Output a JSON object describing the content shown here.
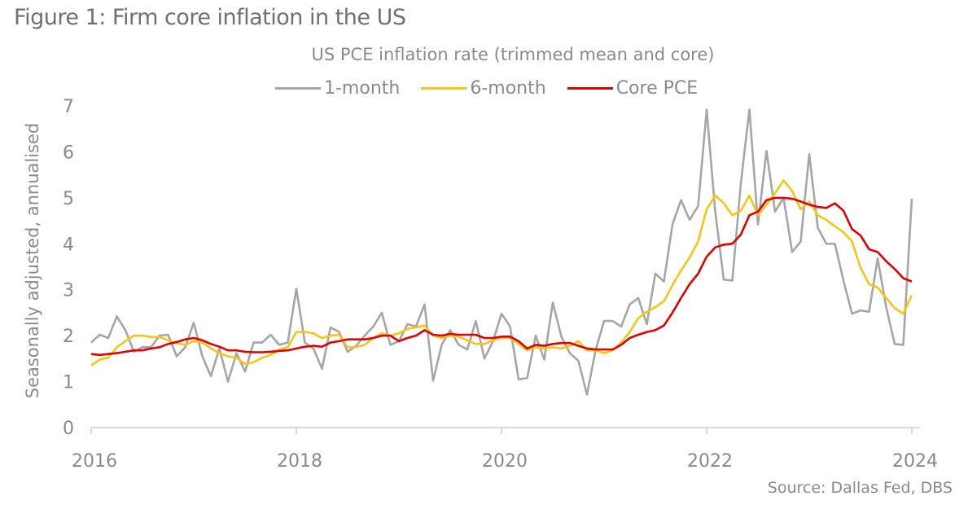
{
  "figure_title": "Figure 1: Firm core inflation in the US",
  "source": "Source: Dallas Fed, DBS",
  "chart_data": {
    "type": "line",
    "title": "US PCE inflation rate (trimmed mean and core)",
    "xlabel": "",
    "ylabel": "Seasonally adjusted, annualised",
    "ylim": [
      0,
      7
    ],
    "xlim": [
      "2016-01",
      "2024-01"
    ],
    "grid": false,
    "legend_position": "top-center",
    "yticks": [
      "0",
      "1",
      "2",
      "3",
      "4",
      "5",
      "6",
      "7"
    ],
    "xticks": [
      "2016",
      "2018",
      "2020",
      "2022",
      "2024"
    ],
    "x_start": "2016-01",
    "x_frequency": "monthly",
    "series": [
      {
        "name": "1-month",
        "color": "#a6a6a6",
        "values": [
          1.85,
          2.02,
          1.95,
          2.42,
          2.12,
          1.65,
          1.75,
          1.75,
          2.0,
          2.02,
          1.55,
          1.75,
          2.28,
          1.55,
          1.12,
          1.72,
          1.0,
          1.62,
          1.22,
          1.85,
          1.85,
          2.02,
          1.8,
          1.85,
          3.02,
          1.85,
          1.72,
          1.28,
          2.18,
          2.08,
          1.65,
          1.78,
          2.0,
          2.2,
          2.5,
          1.8,
          1.88,
          2.25,
          2.2,
          2.68,
          1.02,
          1.8,
          2.12,
          1.8,
          1.7,
          2.32,
          1.5,
          1.88,
          2.48,
          2.2,
          1.05,
          1.08,
          2.0,
          1.48,
          2.72,
          1.98,
          1.62,
          1.45,
          0.72,
          1.68,
          2.32,
          2.32,
          2.2,
          2.68,
          2.82,
          2.25,
          3.35,
          3.18,
          4.42,
          4.95,
          4.52,
          4.82,
          6.92,
          4.7,
          3.22,
          3.2,
          5.32,
          6.92,
          4.42,
          6.02,
          4.7,
          5.0,
          3.82,
          4.05,
          5.95,
          4.35,
          4.0,
          4.0,
          3.2,
          2.48,
          2.55,
          2.52,
          3.68,
          2.62,
          1.82,
          1.8,
          4.98
        ]
      },
      {
        "name": "6-month",
        "color": "#f5c518",
        "values": [
          1.35,
          1.48,
          1.52,
          1.75,
          1.88,
          2.0,
          2.0,
          1.97,
          1.97,
          1.9,
          1.84,
          1.8,
          1.88,
          1.85,
          1.72,
          1.62,
          1.55,
          1.52,
          1.38,
          1.42,
          1.52,
          1.58,
          1.7,
          1.75,
          2.08,
          2.08,
          2.05,
          1.95,
          2.0,
          2.02,
          1.75,
          1.75,
          1.8,
          1.95,
          2.05,
          2.0,
          2.05,
          2.15,
          2.18,
          2.22,
          2.0,
          1.95,
          2.0,
          1.98,
          1.9,
          1.82,
          1.82,
          1.9,
          1.95,
          1.95,
          1.82,
          1.68,
          1.75,
          1.72,
          1.75,
          1.72,
          1.78,
          1.88,
          1.68,
          1.68,
          1.62,
          1.68,
          1.85,
          2.08,
          2.38,
          2.52,
          2.62,
          2.75,
          3.1,
          3.42,
          3.7,
          4.05,
          4.75,
          5.05,
          4.88,
          4.62,
          4.72,
          5.05,
          4.62,
          4.85,
          5.1,
          5.38,
          5.15,
          4.75,
          4.92,
          4.62,
          4.52,
          4.38,
          4.25,
          4.05,
          3.48,
          3.12,
          3.05,
          2.82,
          2.6,
          2.48,
          2.88
        ]
      },
      {
        "name": "Core PCE",
        "color": "#e00000",
        "values": [
          1.6,
          1.58,
          1.6,
          1.62,
          1.65,
          1.68,
          1.68,
          1.72,
          1.75,
          1.82,
          1.86,
          1.92,
          1.95,
          1.9,
          1.82,
          1.76,
          1.68,
          1.68,
          1.65,
          1.64,
          1.64,
          1.65,
          1.67,
          1.68,
          1.72,
          1.76,
          1.78,
          1.76,
          1.85,
          1.88,
          1.92,
          1.92,
          1.92,
          1.95,
          2.0,
          2.0,
          1.88,
          1.95,
          2.0,
          2.12,
          2.02,
          2.0,
          2.04,
          2.02,
          2.02,
          2.02,
          1.95,
          1.95,
          1.98,
          1.98,
          1.88,
          1.72,
          1.8,
          1.78,
          1.82,
          1.84,
          1.84,
          1.78,
          1.72,
          1.7,
          1.7,
          1.7,
          1.8,
          1.95,
          2.02,
          2.08,
          2.12,
          2.22,
          2.5,
          2.82,
          3.12,
          3.35,
          3.72,
          3.92,
          3.98,
          4.0,
          4.2,
          4.62,
          4.7,
          4.95,
          5.0,
          5.0,
          4.98,
          4.92,
          4.85,
          4.8,
          4.78,
          4.88,
          4.72,
          4.32,
          4.18,
          3.88,
          3.82,
          3.62,
          3.45,
          3.25,
          3.18
        ]
      }
    ]
  }
}
